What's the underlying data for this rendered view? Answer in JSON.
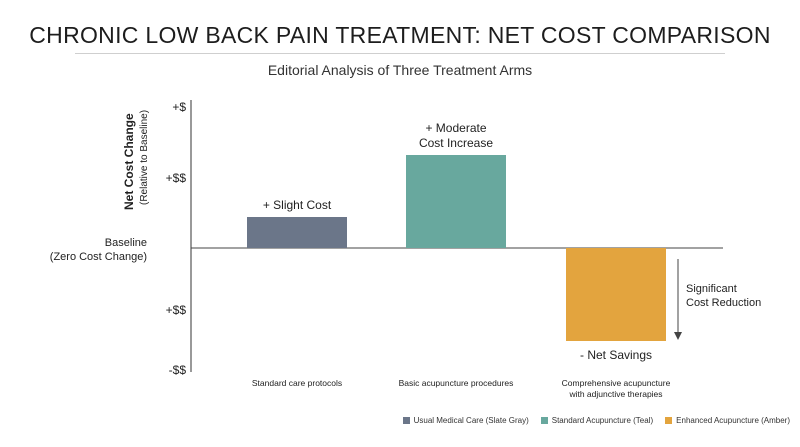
{
  "chart_data": {
    "type": "bar",
    "title": "CHRONIC LOW BACK PAIN TREATMENT: NET COST COMPARISON",
    "subtitle": "Editorial Analysis of Three Treatment Arms",
    "ylabel": "Net Cost Change",
    "ylabel_sub": "(Relative to Baseline)",
    "y_ticks": [
      "+$",
      "+$$",
      "+$$",
      "-$$"
    ],
    "baseline_label": [
      "Baseline",
      "(Zero Cost Change)"
    ],
    "categories": [
      [
        "Standard care protocols"
      ],
      [
        "Basic acupuncture procedures"
      ],
      [
        "Comprehensive acupuncture",
        "with adjunctive therapies"
      ]
    ],
    "values": [
      1,
      3,
      -3
    ],
    "data_labels": [
      [
        "+ Slight Cost"
      ],
      [
        "+ Moderate",
        "Cost Increase"
      ],
      [
        "- Net Savings"
      ]
    ],
    "annotation": [
      "Significant",
      "Cost Reduction"
    ],
    "series": [
      {
        "name": "Usual Medical Care (Slate Gray)",
        "color": "#6b7689"
      },
      {
        "name": "Standard Acupuncture (Teal)",
        "color": "#68a89e"
      },
      {
        "name": "Enhanced Acupuncture (Amber)",
        "color": "#e3a43e"
      }
    ],
    "legend_position": "bottom-right",
    "grid": false
  }
}
